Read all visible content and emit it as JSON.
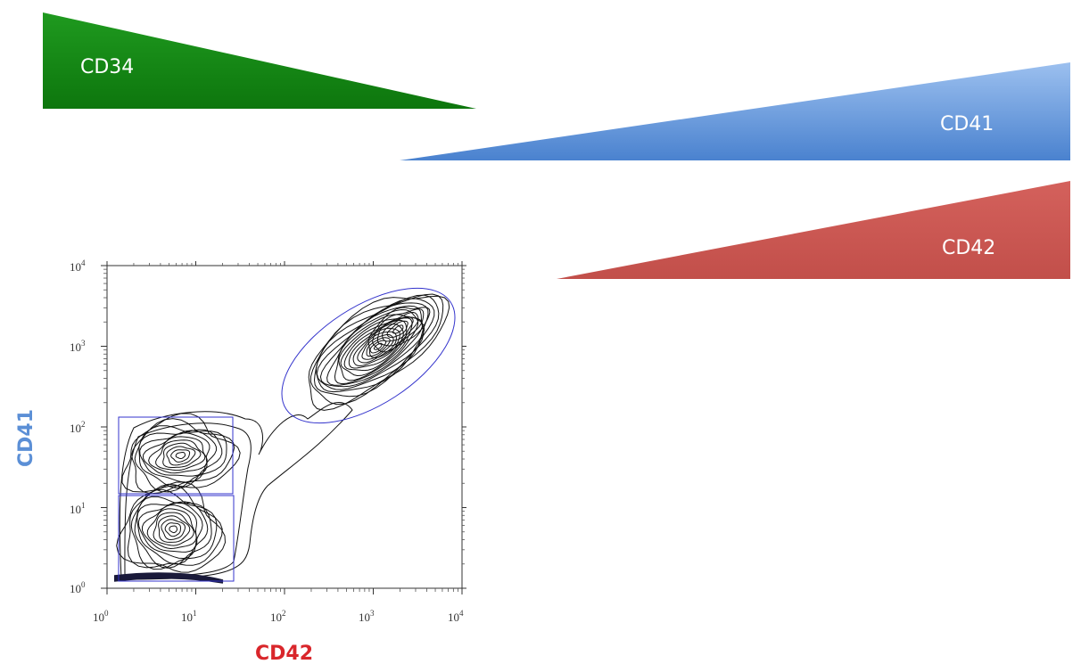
{
  "wedges": [
    {
      "label": "CD34",
      "color": "#138a13",
      "direction": "decreasing"
    },
    {
      "label": "CD41",
      "color": "#5b8fd6",
      "direction": "increasing"
    },
    {
      "label": "CD42",
      "color": "#cf5b56",
      "direction": "increasing"
    }
  ],
  "plot": {
    "type": "flow-cytometry-contour",
    "x_axis": {
      "title": "CD42",
      "title_color": "#d9262b",
      "scale": "log",
      "ticks": [
        {
          "base": "10",
          "exp": "0"
        },
        {
          "base": "10",
          "exp": "1"
        },
        {
          "base": "10",
          "exp": "2"
        },
        {
          "base": "10",
          "exp": "3"
        },
        {
          "base": "10",
          "exp": "4"
        }
      ]
    },
    "y_axis": {
      "title": "CD41",
      "title_color": "#5b8fd6",
      "scale": "log",
      "ticks": [
        {
          "base": "10",
          "exp": "0"
        },
        {
          "base": "10",
          "exp": "1"
        },
        {
          "base": "10",
          "exp": "2"
        },
        {
          "base": "10",
          "exp": "3"
        },
        {
          "base": "10",
          "exp": "4"
        }
      ]
    },
    "gate_color": "#3333cc",
    "contour_color": "#111111"
  }
}
